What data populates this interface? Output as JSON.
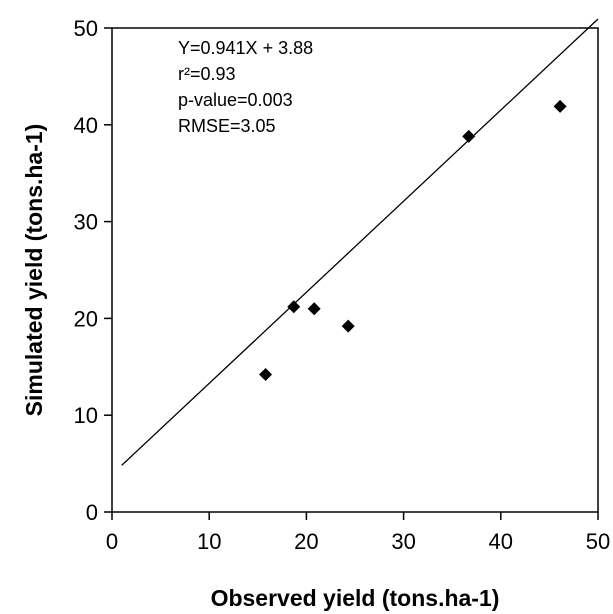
{
  "chart_data": {
    "type": "scatter",
    "xlabel": "Observed yield (tons.ha-1)",
    "ylabel": "Simulated yield (tons.ha-1)",
    "xlim": [
      0,
      50
    ],
    "ylim": [
      0,
      50
    ],
    "x_ticks": [
      "0",
      "10",
      "20",
      "30",
      "40",
      "50"
    ],
    "y_ticks": [
      "0",
      "10",
      "20",
      "30",
      "40",
      "50"
    ],
    "grid": false,
    "marker": "diamond",
    "marker_color": "#000000",
    "points": [
      {
        "x": 15.8,
        "y": 14.2
      },
      {
        "x": 18.7,
        "y": 21.2
      },
      {
        "x": 20.8,
        "y": 21.0
      },
      {
        "x": 24.3,
        "y": 19.2
      },
      {
        "x": 36.7,
        "y": 38.8
      },
      {
        "x": 46.1,
        "y": 41.9
      }
    ],
    "regression": {
      "slope": 0.941,
      "intercept": 3.88,
      "x_range": [
        1,
        50
      ]
    },
    "annotations": [
      "Y=0.941X + 3.88",
      "r²=0.93",
      "p-value=0.003",
      "RMSE=3.05"
    ]
  }
}
